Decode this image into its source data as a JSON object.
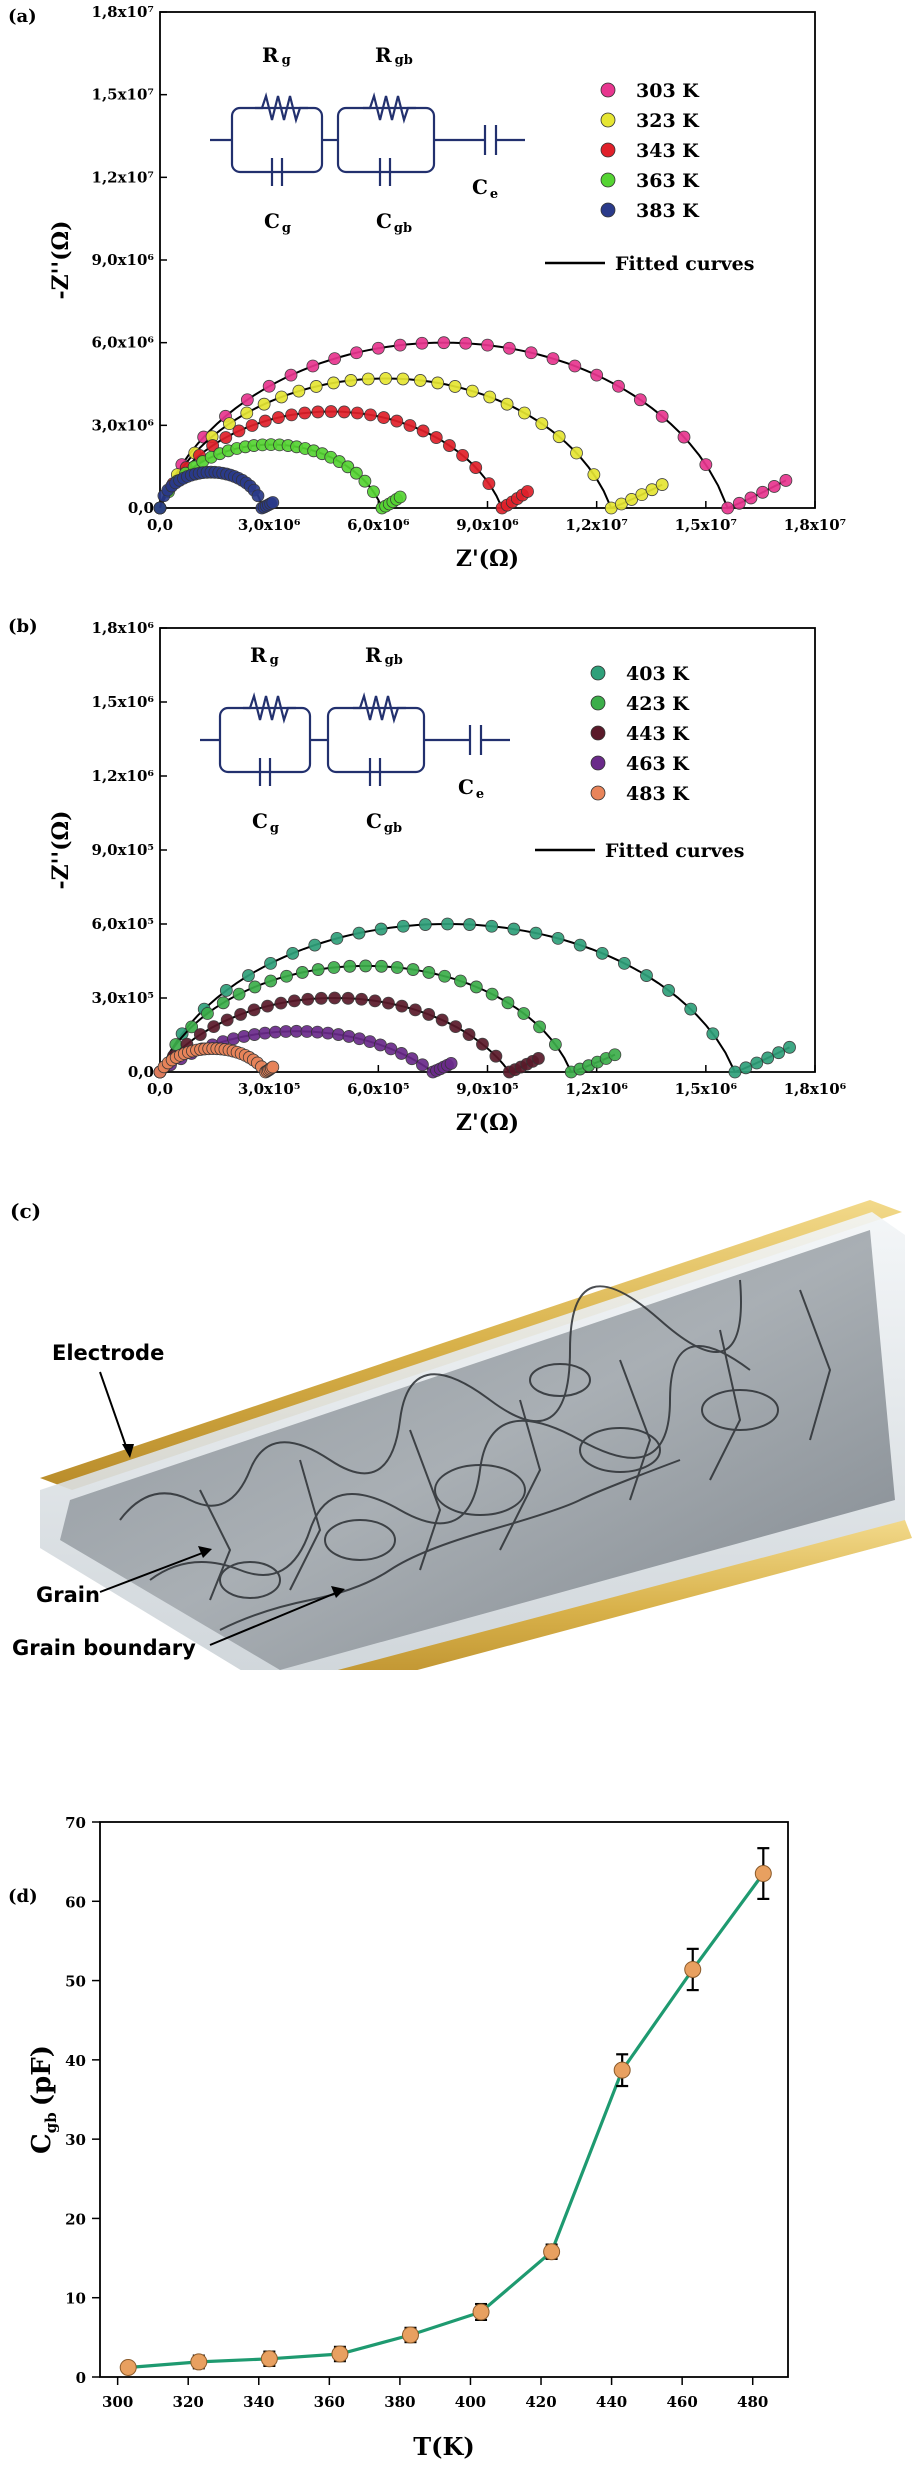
{
  "panel_a": {
    "label": "(a)",
    "legend_fit": "Fitted curves",
    "circuit": {
      "rg": "R",
      "rg_sub": "g",
      "rgb": "R",
      "rgb_sub": "gb",
      "cg": "C",
      "cg_sub": "g",
      "cgb": "C",
      "cgb_sub": "gb",
      "ce": "C",
      "ce_sub": "e"
    }
  },
  "panel_b": {
    "label": "(b)",
    "legend_fit": "Fitted curves",
    "circuit": {
      "rg": "R",
      "rg_sub": "g",
      "rgb": "R",
      "rgb_sub": "gb",
      "cg": "C",
      "cg_sub": "g",
      "cgb": "C",
      "cgb_sub": "gb",
      "ce": "C",
      "ce_sub": "e"
    }
  },
  "panel_c": {
    "label": "(c)",
    "electrode": "Electrode",
    "grain": "Grain",
    "grain_boundary": "Grain boundary"
  },
  "panel_d": {
    "label": "(d)"
  },
  "colors": {
    "p303": "#e8368f",
    "p323": "#e6e633",
    "p343": "#e0202a",
    "p363": "#55d433",
    "p383": "#2a3a8a",
    "p403": "#2fa07a",
    "p423": "#3cae4a",
    "p443": "#5a1a2a",
    "p463": "#6a2a8a",
    "p483": "#e8845a",
    "cgb_line": "#1e9a70",
    "cgb_marker": "#e8a060"
  },
  "chart_data": [
    {
      "type": "scatter",
      "xlabel": "Z'(Ω)",
      "ylabel": "-Z''(Ω)",
      "xlim": [
        0,
        18000000
      ],
      "ylim": [
        0,
        18000000
      ],
      "xticks": [
        "0,0",
        "3,0x10⁶",
        "6,0x10⁶",
        "9,0x10⁶",
        "1,2x10⁷",
        "1,5x10⁷",
        "1,8x10⁷"
      ],
      "yticks": [
        "0,0",
        "3,0x10⁶",
        "6,0x10⁶",
        "9,0x10⁶",
        "1,2x10⁷",
        "1,5x10⁷",
        "1,8x10⁷"
      ],
      "series": [
        {
          "name": "303 K",
          "arc_end": 15600000,
          "peak": 6000000,
          "tail_end": 17200000,
          "tail_top": 1000000
        },
        {
          "name": "323 K",
          "arc_end": 12400000,
          "peak": 4700000,
          "tail_end": 13800000,
          "tail_top": 850000
        },
        {
          "name": "343 K",
          "arc_end": 9400000,
          "peak": 3500000,
          "tail_end": 10100000,
          "tail_top": 600000
        },
        {
          "name": "363 K",
          "arc_end": 6100000,
          "peak": 2300000,
          "tail_end": 6600000,
          "tail_top": 400000
        },
        {
          "name": "383 K",
          "arc_end": 2800000,
          "peak": 1300000,
          "tail_end": 3100000,
          "tail_top": 200000
        }
      ]
    },
    {
      "type": "scatter",
      "xlabel": "Z'(Ω)",
      "ylabel": "-Z''(Ω)",
      "xlim": [
        0,
        1800000
      ],
      "ylim": [
        0,
        1800000
      ],
      "xticks": [
        "0,0",
        "3,0x10⁵",
        "6,0x10⁵",
        "9,0x10⁵",
        "1,2x10⁶",
        "1,5x10⁶",
        "1,8x10⁶"
      ],
      "yticks": [
        "0,0",
        "3,0x10⁵",
        "6,0x10⁵",
        "9,0x10⁵",
        "1,2x10⁶",
        "1,5x10⁶",
        "1,8x10⁶"
      ],
      "series": [
        {
          "name": "403 K",
          "arc_end": 1580000,
          "peak": 600000,
          "tail_end": 1730000,
          "tail_top": 100000
        },
        {
          "name": "423 K",
          "arc_end": 1130000,
          "peak": 430000,
          "tail_end": 1250000,
          "tail_top": 70000
        },
        {
          "name": "443 K",
          "arc_end": 960000,
          "peak": 300000,
          "tail_end": 1040000,
          "tail_top": 55000
        },
        {
          "name": "463 K",
          "arc_end": 750000,
          "peak": 165000,
          "tail_end": 800000,
          "tail_top": 35000
        },
        {
          "name": "483 K",
          "arc_end": 290000,
          "peak": 95000,
          "tail_end": 310000,
          "tail_top": 20000
        }
      ]
    },
    {
      "type": "line",
      "xlabel": "T(K)",
      "ylabel": "C",
      "ylabel_sub": "gb",
      "ylabel_unit": "(pF)",
      "xlim": [
        295,
        490
      ],
      "ylim": [
        0,
        70
      ],
      "xticks": [
        300,
        320,
        340,
        360,
        380,
        400,
        420,
        440,
        460,
        480
      ],
      "yticks": [
        0,
        10,
        20,
        30,
        40,
        50,
        60,
        70
      ],
      "x": [
        303,
        323,
        343,
        363,
        383,
        403,
        423,
        443,
        463,
        483
      ],
      "y": [
        1.2,
        1.9,
        2.3,
        2.9,
        5.3,
        8.2,
        15.8,
        38.7,
        51.4,
        63.5
      ],
      "err": [
        0.6,
        0.8,
        0.9,
        0.9,
        0.9,
        1.0,
        0.9,
        2.0,
        2.6,
        3.2
      ]
    }
  ]
}
